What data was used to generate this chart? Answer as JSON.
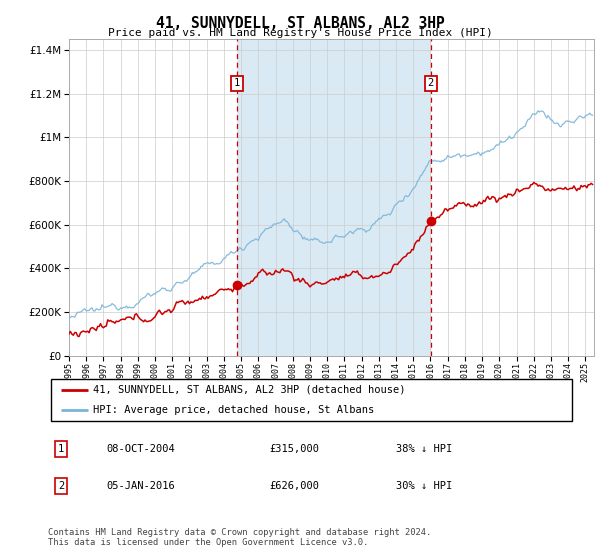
{
  "title": "41, SUNNYDELL, ST ALBANS, AL2 3HP",
  "subtitle": "Price paid vs. HM Land Registry's House Price Index (HPI)",
  "legend_line1": "41, SUNNYDELL, ST ALBANS, AL2 3HP (detached house)",
  "legend_line2": "HPI: Average price, detached house, St Albans",
  "transaction1_date": "08-OCT-2004",
  "transaction1_price": "£315,000",
  "transaction1_hpi": "38% ↓ HPI",
  "transaction1_year": 2004.77,
  "transaction1_value": 315000,
  "transaction2_date": "05-JAN-2016",
  "transaction2_price": "£626,000",
  "transaction2_hpi": "30% ↓ HPI",
  "transaction2_year": 2016.02,
  "transaction2_value": 626000,
  "footer": "Contains HM Land Registry data © Crown copyright and database right 2024.\nThis data is licensed under the Open Government Licence v3.0.",
  "red_color": "#cc0000",
  "blue_color": "#7ab4d8",
  "shade_color": "#daeaf5",
  "grid_color": "#cccccc",
  "marker_box_color": "#cc0000",
  "ylim_min": 0,
  "ylim_max": 1450000,
  "xlim_min": 1995,
  "xlim_max": 2025.5,
  "yticks": [
    0,
    200000,
    400000,
    600000,
    800000,
    1000000,
    1200000,
    1400000
  ]
}
